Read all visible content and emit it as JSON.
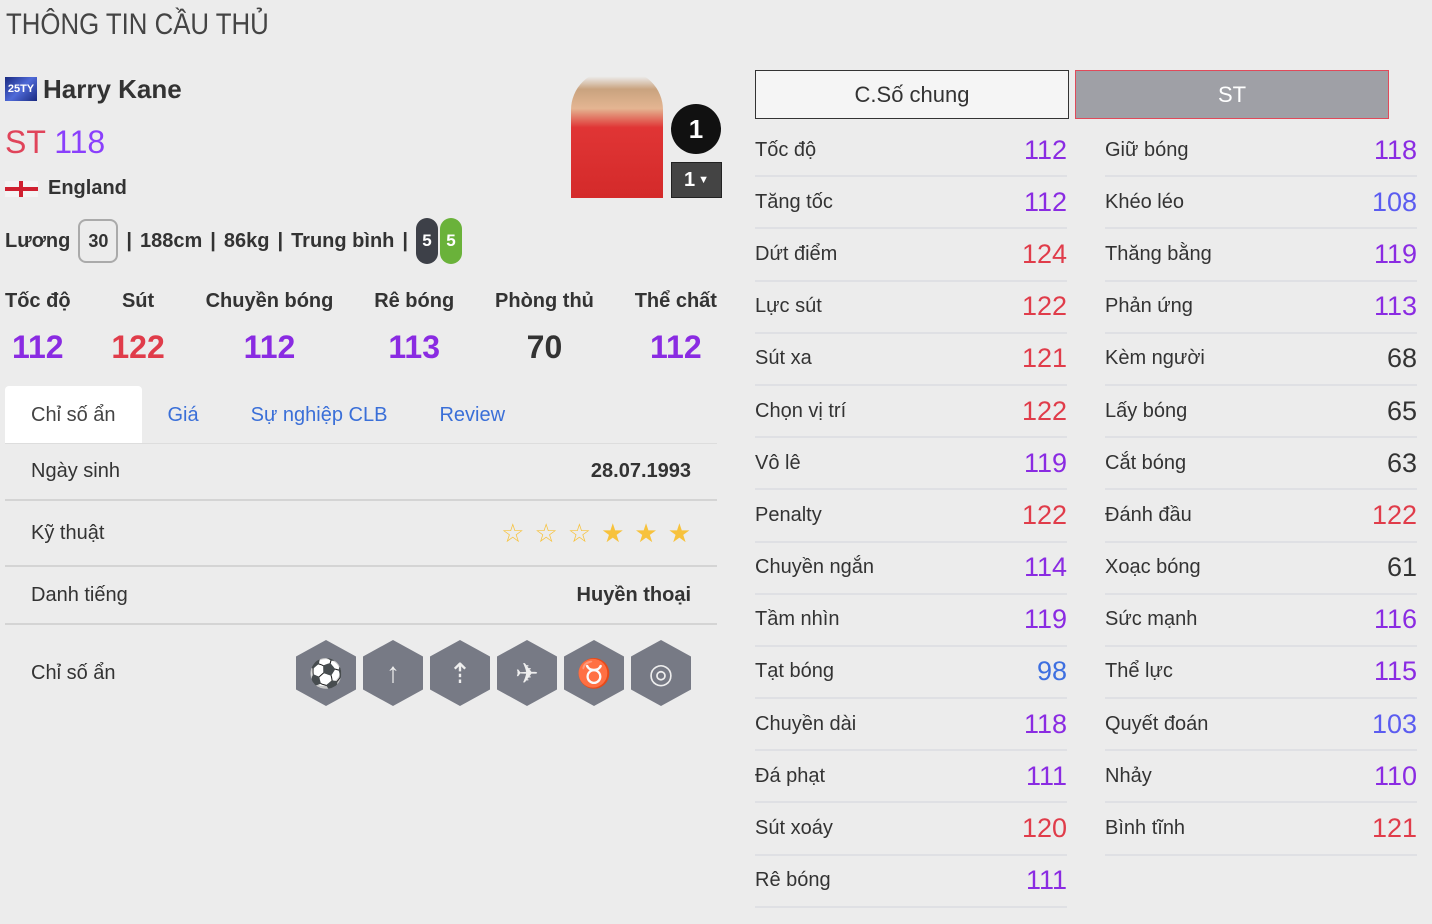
{
  "page_title": "THÔNG TIN CẦU THỦ",
  "player": {
    "season": "25TY",
    "name": "Harry Kane",
    "position": "ST",
    "overall": "118",
    "nation": "England",
    "salary_label": "Lương",
    "salary": "30",
    "height": "188cm",
    "weight": "86kg",
    "body_type": "Trung bình",
    "weak_foot_left": "5",
    "weak_foot_right": "5",
    "team_badge": "1",
    "upgrade_level": "1"
  },
  "summary": [
    {
      "label": "Tốc độ",
      "value": "112"
    },
    {
      "label": "Sút",
      "value": "122"
    },
    {
      "label": "Chuyền bóng",
      "value": "112"
    },
    {
      "label": "Rê bóng",
      "value": "113"
    },
    {
      "label": "Phòng thủ",
      "value": "70"
    },
    {
      "label": "Thể chất",
      "value": "112"
    }
  ],
  "tabs": [
    {
      "label": "Chỉ số ẩn"
    },
    {
      "label": "Giá"
    },
    {
      "label": "Sự nghiệp CLB"
    },
    {
      "label": "Review"
    }
  ],
  "details": {
    "birth_label": "Ngày sinh",
    "birth": "28.07.1993",
    "skill_label": "Kỹ thuật",
    "skill_stars": 3,
    "skill_max": 6,
    "fame_label": "Danh tiếng",
    "fame": "Huyền thoại",
    "traits_label": "Chỉ số ẩn",
    "traits": [
      "long-shot-icon",
      "power-header-icon",
      "finesse-header-icon",
      "chip-shot-icon",
      "bull-icon",
      "outside-foot-shot-icon"
    ]
  },
  "right_tabs": [
    {
      "label": "C.Số chung"
    },
    {
      "label": "ST"
    }
  ],
  "colors": {
    "red": "#e03c4a",
    "purple": "#8a2be2",
    "indigo": "#5b5cf0",
    "blue": "#3d6fe0",
    "gray": "#333333"
  },
  "stats_left": [
    {
      "label": "Tốc độ",
      "value": "112"
    },
    {
      "label": "Tăng tốc",
      "value": "112"
    },
    {
      "label": "Dứt điểm",
      "value": "124"
    },
    {
      "label": "Lực sút",
      "value": "122"
    },
    {
      "label": "Sút xa",
      "value": "121"
    },
    {
      "label": "Chọn vị trí",
      "value": "122"
    },
    {
      "label": "Vô lê",
      "value": "119"
    },
    {
      "label": "Penalty",
      "value": "122"
    },
    {
      "label": "Chuyền ngắn",
      "value": "114"
    },
    {
      "label": "Tầm nhìn",
      "value": "119"
    },
    {
      "label": "Tạt bóng",
      "value": "98"
    },
    {
      "label": "Chuyền dài",
      "value": "118"
    },
    {
      "label": "Đá phạt",
      "value": "111"
    },
    {
      "label": "Sút xoáy",
      "value": "120"
    },
    {
      "label": "Rê bóng",
      "value": "111"
    }
  ],
  "stats_right": [
    {
      "label": "Giữ bóng",
      "value": "118"
    },
    {
      "label": "Khéo léo",
      "value": "108"
    },
    {
      "label": "Thăng bằng",
      "value": "119"
    },
    {
      "label": "Phản ứng",
      "value": "113"
    },
    {
      "label": "Kèm người",
      "value": "68"
    },
    {
      "label": "Lấy bóng",
      "value": "65"
    },
    {
      "label": "Cắt bóng",
      "value": "63"
    },
    {
      "label": "Đánh đầu",
      "value": "122"
    },
    {
      "label": "Xoạc bóng",
      "value": "61"
    },
    {
      "label": "Sức mạnh",
      "value": "116"
    },
    {
      "label": "Thể lực",
      "value": "115"
    },
    {
      "label": "Quyết đoán",
      "value": "103"
    },
    {
      "label": "Nhảy",
      "value": "110"
    },
    {
      "label": "Bình tĩnh",
      "value": "121"
    }
  ]
}
